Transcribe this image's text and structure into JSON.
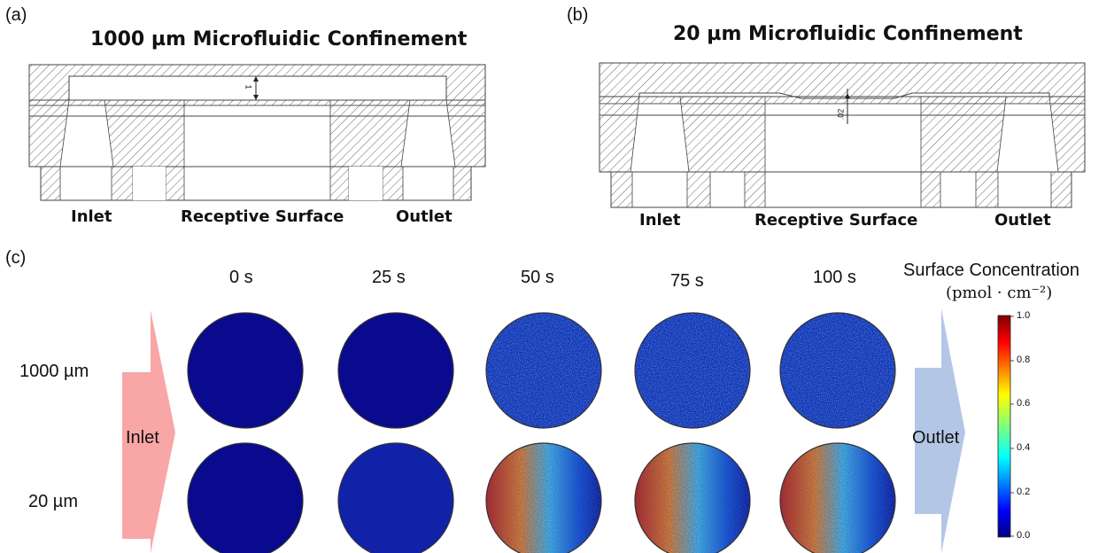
{
  "panel_a": {
    "label": "(a)",
    "title": "1000 µm Microfluidic Confinement",
    "dimension_text": "1",
    "captions": [
      "Inlet",
      "Receptive Surface",
      "Outlet"
    ]
  },
  "panel_b": {
    "label": "(b)",
    "title": "20 µm Microfluidic Confinement",
    "dimension_text": ".02",
    "captions": [
      "Inlet",
      "Receptive Surface",
      "Outlet"
    ]
  },
  "panel_c": {
    "label": "(c)",
    "times": [
      "0 s",
      "25 s",
      "50 s",
      "75 s",
      "100 s"
    ],
    "rows": [
      "1000 µm",
      "20 µm"
    ],
    "inlet_label": "Inlet",
    "outlet_label": "Outlet",
    "colorbar": {
      "title": "Surface Concentration",
      "unit": "(pmol · cm⁻²)",
      "ticks": [
        "1.0",
        "0.8",
        "0.6",
        "0.4",
        "0.2",
        "0.0"
      ]
    },
    "cells": [
      [
        {
          "fill": "#0a0a8e",
          "noise": 0
        },
        {
          "fill": "#0a0a8e",
          "noise": 0
        },
        {
          "fill": "#1030b0",
          "noise": 1
        },
        {
          "fill": "#1030b0",
          "noise": 1
        },
        {
          "fill": "#1030b0",
          "noise": 1
        }
      ],
      [
        {
          "fill": "#0a0a8e",
          "noise": 0
        },
        {
          "fill": "#1222a8",
          "noise": 0
        },
        {
          "fill": "#c0402a",
          "noise": 2
        },
        {
          "fill": "#c0402a",
          "noise": 2
        },
        {
          "fill": "#c0402a",
          "noise": 2
        }
      ]
    ]
  }
}
